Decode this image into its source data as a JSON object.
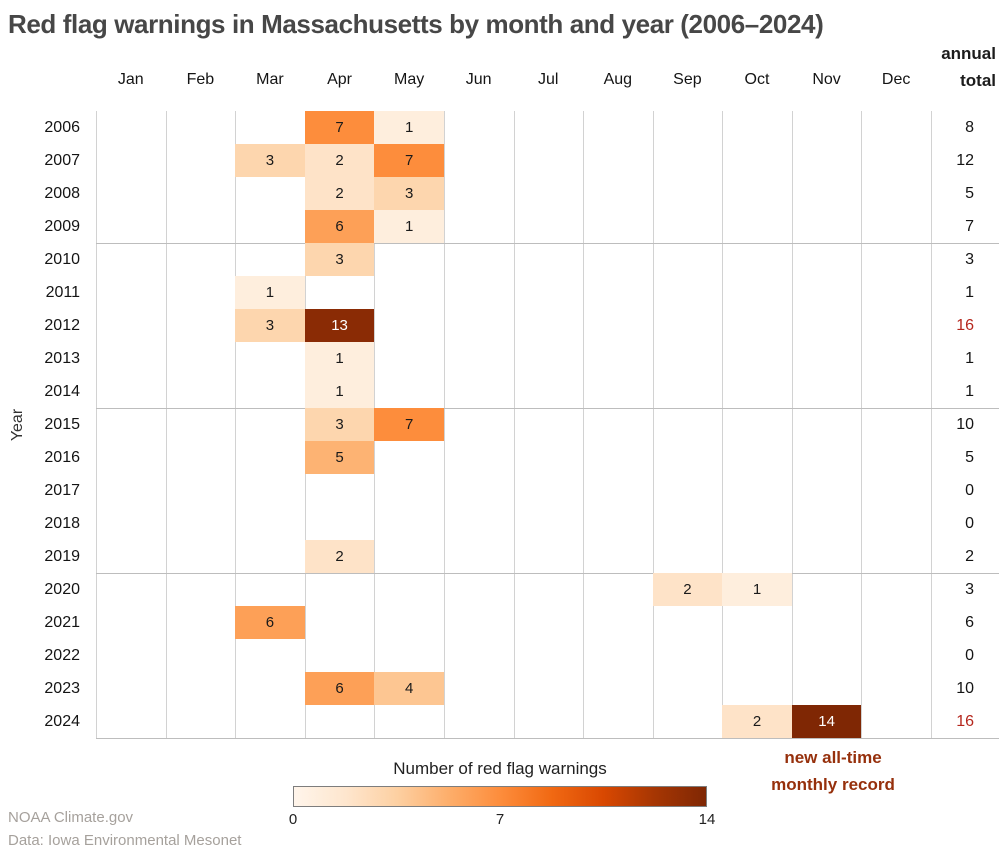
{
  "chart_data": {
    "type": "heatmap",
    "title": "Red flag warnings in Massachusetts by month and year (2006–2024)",
    "ylabel": "Year",
    "annual_total_header": "annual total",
    "columns": [
      "Jan",
      "Feb",
      "Mar",
      "Apr",
      "May",
      "Jun",
      "Jul",
      "Aug",
      "Sep",
      "Oct",
      "Nov",
      "Dec"
    ],
    "value_range": [
      0,
      14
    ],
    "colormap": "Oranges",
    "palette": {
      "1": "#feeedd",
      "2": "#fee3c8",
      "3": "#fdd6ae",
      "4": "#fdc692",
      "5": "#fdb373",
      "6": "#fda057",
      "7": "#fd8d3c",
      "13": "#8a2b05",
      "14": "#7f2704"
    },
    "dark_text_threshold": 13,
    "record_total_color": "#b5271d",
    "separator_years": [
      "2010",
      "2015",
      "2020"
    ],
    "rows": [
      {
        "year": "2006",
        "values": [
          null,
          null,
          null,
          7,
          1,
          null,
          null,
          null,
          null,
          null,
          null,
          null
        ],
        "total": 8,
        "record": false
      },
      {
        "year": "2007",
        "values": [
          null,
          null,
          3,
          2,
          7,
          null,
          null,
          null,
          null,
          null,
          null,
          null
        ],
        "total": 12,
        "record": false
      },
      {
        "year": "2008",
        "values": [
          null,
          null,
          null,
          2,
          3,
          null,
          null,
          null,
          null,
          null,
          null,
          null
        ],
        "total": 5,
        "record": false
      },
      {
        "year": "2009",
        "values": [
          null,
          null,
          null,
          6,
          1,
          null,
          null,
          null,
          null,
          null,
          null,
          null
        ],
        "total": 7,
        "record": false
      },
      {
        "year": "2010",
        "values": [
          null,
          null,
          null,
          3,
          null,
          null,
          null,
          null,
          null,
          null,
          null,
          null
        ],
        "total": 3,
        "record": false
      },
      {
        "year": "2011",
        "values": [
          null,
          null,
          1,
          null,
          null,
          null,
          null,
          null,
          null,
          null,
          null,
          null
        ],
        "total": 1,
        "record": false
      },
      {
        "year": "2012",
        "values": [
          null,
          null,
          3,
          13,
          null,
          null,
          null,
          null,
          null,
          null,
          null,
          null
        ],
        "total": 16,
        "record": true
      },
      {
        "year": "2013",
        "values": [
          null,
          null,
          null,
          1,
          null,
          null,
          null,
          null,
          null,
          null,
          null,
          null
        ],
        "total": 1,
        "record": false
      },
      {
        "year": "2014",
        "values": [
          null,
          null,
          null,
          1,
          null,
          null,
          null,
          null,
          null,
          null,
          null,
          null
        ],
        "total": 1,
        "record": false
      },
      {
        "year": "2015",
        "values": [
          null,
          null,
          null,
          3,
          7,
          null,
          null,
          null,
          null,
          null,
          null,
          null
        ],
        "total": 10,
        "record": false
      },
      {
        "year": "2016",
        "values": [
          null,
          null,
          null,
          5,
          null,
          null,
          null,
          null,
          null,
          null,
          null,
          null
        ],
        "total": 5,
        "record": false
      },
      {
        "year": "2017",
        "values": [
          null,
          null,
          null,
          null,
          null,
          null,
          null,
          null,
          null,
          null,
          null,
          null
        ],
        "total": 0,
        "record": false
      },
      {
        "year": "2018",
        "values": [
          null,
          null,
          null,
          null,
          null,
          null,
          null,
          null,
          null,
          null,
          null,
          null
        ],
        "total": 0,
        "record": false
      },
      {
        "year": "2019",
        "values": [
          null,
          null,
          null,
          2,
          null,
          null,
          null,
          null,
          null,
          null,
          null,
          null
        ],
        "total": 2,
        "record": false
      },
      {
        "year": "2020",
        "values": [
          null,
          null,
          null,
          null,
          null,
          null,
          null,
          null,
          2,
          1,
          null,
          null
        ],
        "total": 3,
        "record": false
      },
      {
        "year": "2021",
        "values": [
          null,
          null,
          6,
          null,
          null,
          null,
          null,
          null,
          null,
          null,
          null,
          null
        ],
        "total": 6,
        "record": false
      },
      {
        "year": "2022",
        "values": [
          null,
          null,
          null,
          null,
          null,
          null,
          null,
          null,
          null,
          null,
          null,
          null
        ],
        "total": 0,
        "record": false
      },
      {
        "year": "2023",
        "values": [
          null,
          null,
          null,
          6,
          4,
          null,
          null,
          null,
          null,
          null,
          null,
          null
        ],
        "total": 10,
        "record": false
      },
      {
        "year": "2024",
        "values": [
          null,
          null,
          null,
          null,
          null,
          null,
          null,
          null,
          null,
          2,
          14,
          null
        ],
        "total": 16,
        "record": true
      }
    ],
    "legend": {
      "title": "Number of red flag warnings",
      "ticks": [
        "0",
        "7",
        "14"
      ]
    },
    "annotation": {
      "text": "new all-time monthly record",
      "color": "#96300c"
    }
  },
  "footer": {
    "line1": "NOAA Climate.gov",
    "line2": "Data: Iowa Environmental Mesonet"
  }
}
